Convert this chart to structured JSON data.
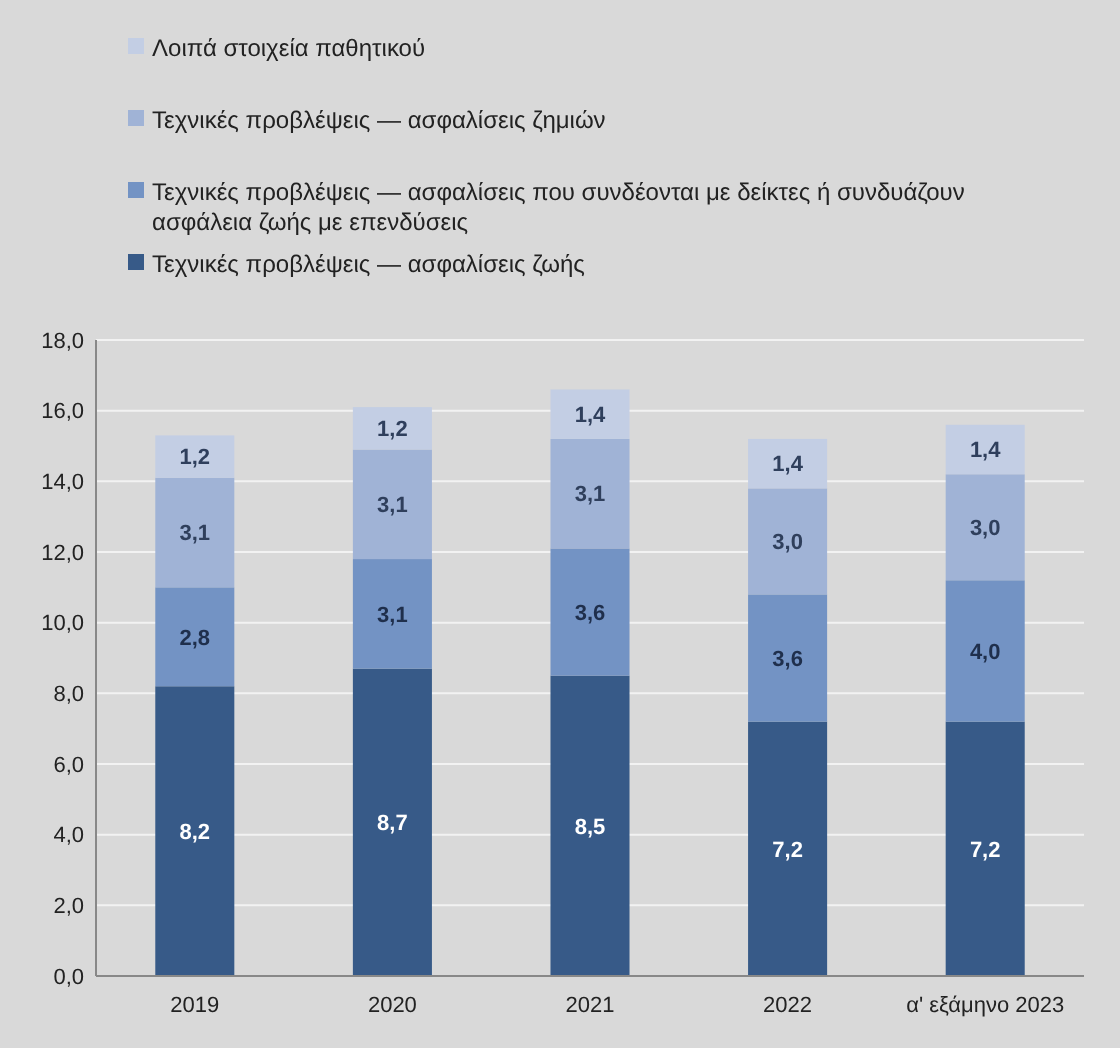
{
  "chart_data": {
    "type": "bar",
    "stacked": true,
    "categories": [
      "2019",
      "2020",
      "2021",
      "2022",
      "α' εξάμηνο 2023"
    ],
    "series": [
      {
        "name": "Τεχνικές προβλέψεις — ασφαλίσεις ζωής",
        "color": "#375a88",
        "values": [
          8.2,
          8.7,
          8.5,
          7.2,
          7.2
        ],
        "value_labels": [
          "8,2",
          "8,7",
          "8,5",
          "7,2",
          "7,2"
        ]
      },
      {
        "name": "Τεχνικές προβλέψεις — ασφαλίσεις που συνδέονται με δείκτες ή συνδυάζουν ασφάλεια ζωής με επενδύσεις",
        "color": "#7393c4",
        "values": [
          2.8,
          3.1,
          3.6,
          3.6,
          4.0
        ],
        "value_labels": [
          "2,8",
          "3,1",
          "3,6",
          "3,6",
          "4,0"
        ]
      },
      {
        "name": "Τεχνικές προβλέψεις — ασφαλίσεις ζημιών",
        "color": "#a0b3d6",
        "values": [
          3.1,
          3.1,
          3.1,
          3.0,
          3.0
        ],
        "value_labels": [
          "3,1",
          "3,1",
          "3,1",
          "3,0",
          "3,0"
        ]
      },
      {
        "name": "Λοιπά στοιχεία παθητικού",
        "color": "#c3cee4",
        "values": [
          1.2,
          1.2,
          1.4,
          1.4,
          1.4
        ],
        "value_labels": [
          "1,2",
          "1,2",
          "1,4",
          "1,4",
          "1,4"
        ]
      }
    ],
    "ylim": [
      0,
      18
    ],
    "yticks": [
      {
        "value": 0,
        "label": "0,0"
      },
      {
        "value": 2,
        "label": "2,0"
      },
      {
        "value": 4,
        "label": "4,0"
      },
      {
        "value": 6,
        "label": "6,0"
      },
      {
        "value": 8,
        "label": "8,0"
      },
      {
        "value": 10,
        "label": "10,0"
      },
      {
        "value": 12,
        "label": "12,0"
      },
      {
        "value": 14,
        "label": "14,0"
      },
      {
        "value": 16,
        "label": "16,0"
      },
      {
        "value": 18,
        "label": "18,0"
      }
    ],
    "grid": "y",
    "legend": "top"
  }
}
